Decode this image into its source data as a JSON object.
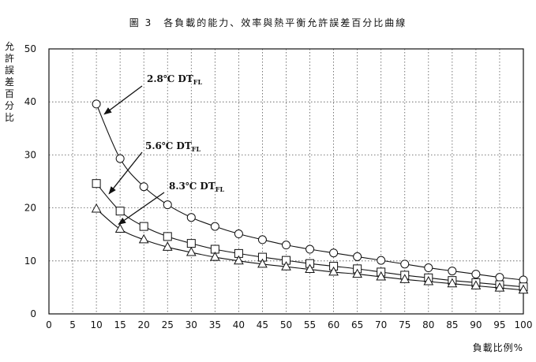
{
  "title": "圖 3　各負載的能力、效率與熱平衡允許誤差百分比曲線",
  "ylabel": "允許誤差百分比",
  "xlabel": "負載比例%",
  "chart_data": {
    "type": "line",
    "title": "圖 3　各負載的能力、效率與熱平衡允許誤差百分比曲線",
    "xlabel": "負載比例%",
    "ylabel": "允許誤差百分比",
    "xlim": [
      0,
      100
    ],
    "ylim": [
      0,
      50
    ],
    "x_ticks": [
      0,
      5,
      10,
      15,
      20,
      25,
      30,
      35,
      40,
      45,
      50,
      55,
      60,
      65,
      70,
      75,
      80,
      85,
      90,
      95,
      100
    ],
    "y_ticks": [
      0,
      10,
      20,
      30,
      40,
      50
    ],
    "grid": true,
    "x": [
      10,
      15,
      20,
      25,
      30,
      35,
      40,
      45,
      50,
      55,
      60,
      65,
      70,
      75,
      80,
      85,
      90,
      95,
      100
    ],
    "series": [
      {
        "name": "2.8℃ DT_FL",
        "marker": "circle",
        "values": [
          39.6,
          29.3,
          24.0,
          20.6,
          18.2,
          16.5,
          15.1,
          14.0,
          13.0,
          12.2,
          11.5,
          10.8,
          10.1,
          9.4,
          8.7,
          8.1,
          7.5,
          6.9,
          6.4
        ]
      },
      {
        "name": "5.6℃ DT_FL",
        "marker": "square",
        "values": [
          24.6,
          19.4,
          16.5,
          14.6,
          13.3,
          12.2,
          11.4,
          10.7,
          10.1,
          9.5,
          9.0,
          8.5,
          7.9,
          7.3,
          6.8,
          6.3,
          5.9,
          5.5,
          5.1
        ]
      },
      {
        "name": "8.3℃ DT_FL",
        "marker": "triangle",
        "values": [
          19.8,
          16.0,
          14.0,
          12.6,
          11.6,
          10.7,
          10.0,
          9.4,
          8.9,
          8.4,
          7.9,
          7.5,
          7.0,
          6.5,
          6.1,
          5.7,
          5.3,
          4.9,
          4.5
        ]
      }
    ],
    "annotations": [
      {
        "text": "2.8℃ DT",
        "sub": "FL",
        "series": 0,
        "point_x": 11
      },
      {
        "text": "5.6℃ DT",
        "sub": "FL",
        "series": 1,
        "point_x": 12
      },
      {
        "text": "8.3℃ DT",
        "sub": "FL",
        "series": 2,
        "point_x": 14
      }
    ]
  }
}
